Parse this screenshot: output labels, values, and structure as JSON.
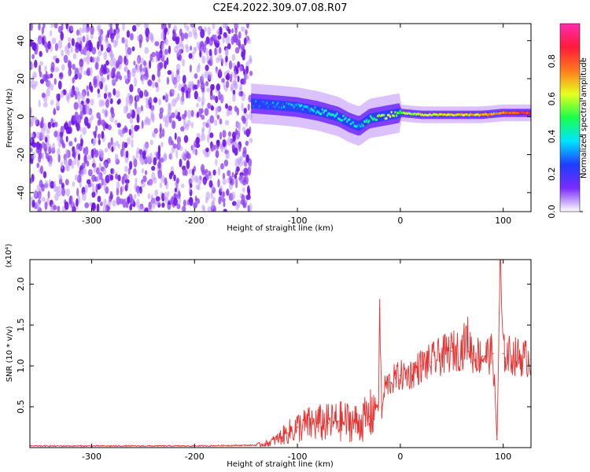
{
  "title": "C2E4.2022.309.07.08.R07",
  "colors": {
    "series": "#e83030",
    "spectrogram_low": "#6f2cff",
    "spectrogram_mid": "#00e5ff",
    "spectrogram_high": "#ff1a1a"
  },
  "colorbar": {
    "label": "Normalized spectral amplitude",
    "ticks": [
      "0.0",
      "0.2",
      "0.4",
      "0.6",
      "0.8"
    ],
    "tick_values": [
      0.0,
      0.2,
      0.4,
      0.6,
      0.8
    ],
    "range": [
      0.0,
      1.0
    ],
    "colormap": [
      "#ffffff",
      "#7a2cff",
      "#1e3cff",
      "#00e5ff",
      "#19ff4b",
      "#e8ff1e",
      "#ff7a1e",
      "#ff1a3a",
      "#ff2bb0"
    ]
  },
  "chart_data": [
    {
      "type": "heatmap",
      "xlabel": "Height of straight line (km)",
      "ylabel": "Frequency (Hz)",
      "xlim": [
        -360,
        127
      ],
      "ylim": [
        -50,
        49
      ],
      "x_ticks": [
        -300,
        -200,
        -100,
        0,
        100
      ],
      "x_tick_labels": [
        "-300",
        "-200",
        "-100",
        "0",
        "100"
      ],
      "y_ticks": [
        -40,
        -20,
        0,
        20,
        40
      ],
      "y_tick_labels": [
        "-40",
        "-20",
        "0",
        "20",
        "40"
      ],
      "noise_region_x": [
        -360,
        -145
      ],
      "ridge": {
        "x": [
          -145,
          -120,
          -100,
          -80,
          -60,
          -50,
          -40,
          -30,
          -20,
          -10,
          0,
          20,
          40,
          60,
          80,
          100,
          127
        ],
        "frequency": [
          7,
          6,
          5,
          3,
          0,
          -3,
          -5,
          -1,
          0,
          1,
          2,
          1,
          1,
          1,
          1,
          2,
          2
        ],
        "amplitude": [
          0.25,
          0.3,
          0.35,
          0.4,
          0.45,
          0.4,
          0.35,
          0.5,
          0.55,
          0.6,
          0.55,
          0.6,
          0.65,
          0.65,
          0.7,
          0.75,
          0.85
        ]
      }
    },
    {
      "type": "line",
      "xlabel": "Height of straight line (km)",
      "ylabel": "SNR (10 * v/v)",
      "y_multiplier": "(x10⁴)",
      "xlim": [
        -360,
        127
      ],
      "ylim": [
        0,
        2.3
      ],
      "x_ticks": [
        -300,
        -200,
        -100,
        0,
        100
      ],
      "x_tick_labels": [
        "-300",
        "-200",
        "-100",
        "0",
        "100"
      ],
      "y_ticks": [
        0.5,
        1.0,
        1.5,
        2.0
      ],
      "y_tick_labels": [
        "0.5",
        "1.0",
        "1.5",
        "2.0"
      ],
      "series": [
        {
          "x": [
            -360,
            -300,
            -200,
            -140,
            -130,
            -120,
            -110,
            -100,
            -90,
            -80,
            -70,
            -60,
            -50,
            -40,
            -30,
            -25,
            -21,
            -20,
            -18,
            -15,
            -10,
            -5,
            0,
            10,
            20,
            30,
            40,
            50,
            60,
            65,
            70,
            80,
            90,
            94,
            97,
            100,
            110,
            120,
            127
          ],
          "y": [
            0.02,
            0.02,
            0.02,
            0.03,
            0.05,
            0.1,
            0.18,
            0.25,
            0.28,
            0.3,
            0.3,
            0.32,
            0.32,
            0.3,
            0.38,
            0.5,
            0.55,
            1.7,
            0.4,
            0.75,
            0.8,
            0.85,
            0.88,
            0.9,
            1.0,
            1.05,
            1.12,
            1.18,
            1.2,
            1.35,
            1.15,
            1.12,
            1.15,
            0.1,
            2.25,
            1.15,
            1.12,
            1.1,
            1.08
          ]
        }
      ]
    }
  ]
}
